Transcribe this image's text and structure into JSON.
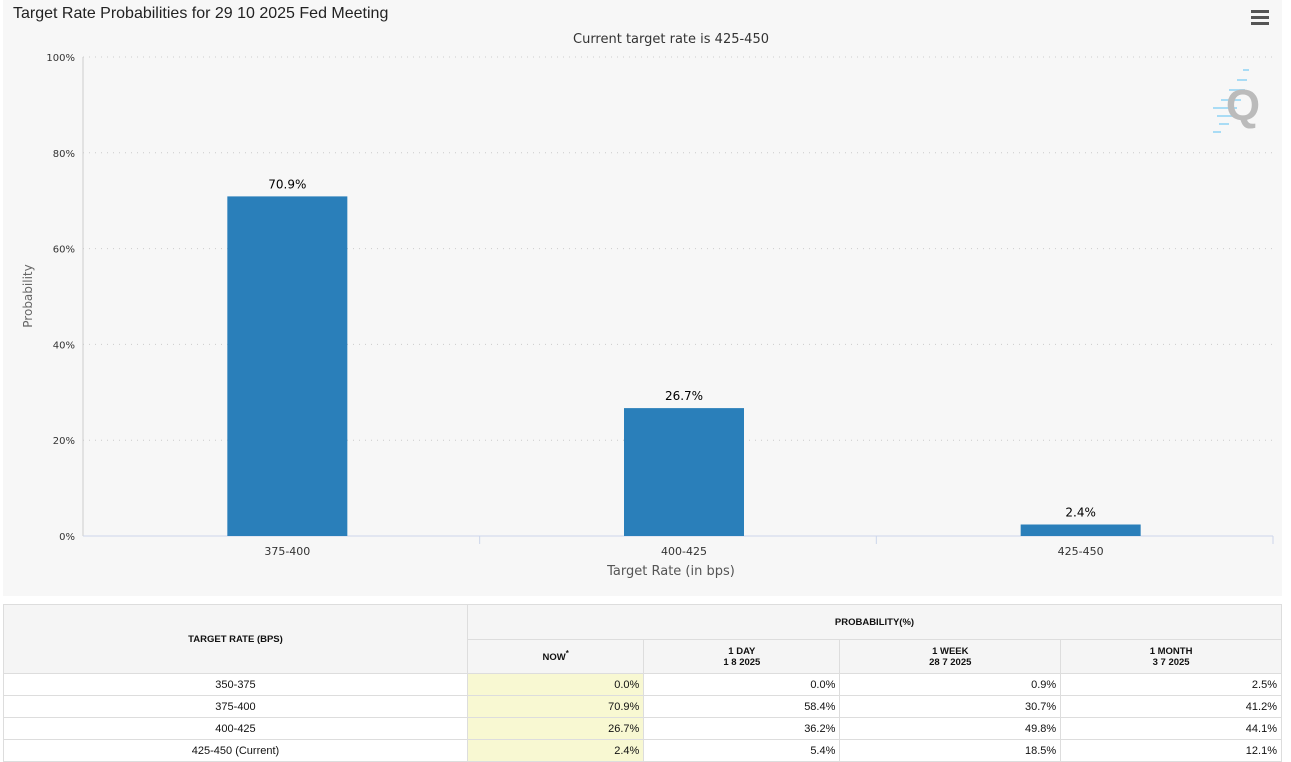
{
  "header": {
    "title": "Target Rate Probabilities for 29 10 2025 Fed Meeting",
    "menu_icon": "hamburger-menu-icon"
  },
  "chart_data": {
    "type": "bar",
    "title": "Target Rate Probabilities for 29 10 2025 Fed Meeting",
    "subtitle": "Current target rate is 425-450",
    "categories": [
      "375-400",
      "400-425",
      "425-450"
    ],
    "values": [
      70.9,
      26.7,
      2.4
    ],
    "data_labels": [
      "70.9%",
      "26.7%",
      "2.4%"
    ],
    "xlabel": "Target Rate (in bps)",
    "ylabel": "Probability",
    "ylim": [
      0,
      100
    ],
    "yticks": [
      0,
      20,
      40,
      60,
      80,
      100
    ],
    "ytick_labels": [
      "0%",
      "20%",
      "40%",
      "60%",
      "80%",
      "100%"
    ],
    "grid": true,
    "bar_color": "#2a7fba"
  },
  "table": {
    "col1_header": "TARGET RATE (BPS)",
    "group_header": "PROBABILITY(%)",
    "columns": [
      {
        "label": "NOW",
        "sup": "*",
        "date": ""
      },
      {
        "label": "1 DAY",
        "date": "1 8 2025"
      },
      {
        "label": "1 WEEK",
        "date": "28 7 2025"
      },
      {
        "label": "1 MONTH",
        "date": "3 7 2025"
      }
    ],
    "rows": [
      {
        "rate": "350-375",
        "values": [
          "0.0%",
          "0.0%",
          "0.9%",
          "2.5%"
        ]
      },
      {
        "rate": "375-400",
        "values": [
          "70.9%",
          "58.4%",
          "30.7%",
          "41.2%"
        ]
      },
      {
        "rate": "400-425",
        "values": [
          "26.7%",
          "36.2%",
          "49.8%",
          "44.1%"
        ]
      },
      {
        "rate": "425-450 (Current)",
        "values": [
          "2.4%",
          "5.4%",
          "18.5%",
          "12.1%"
        ]
      }
    ]
  }
}
